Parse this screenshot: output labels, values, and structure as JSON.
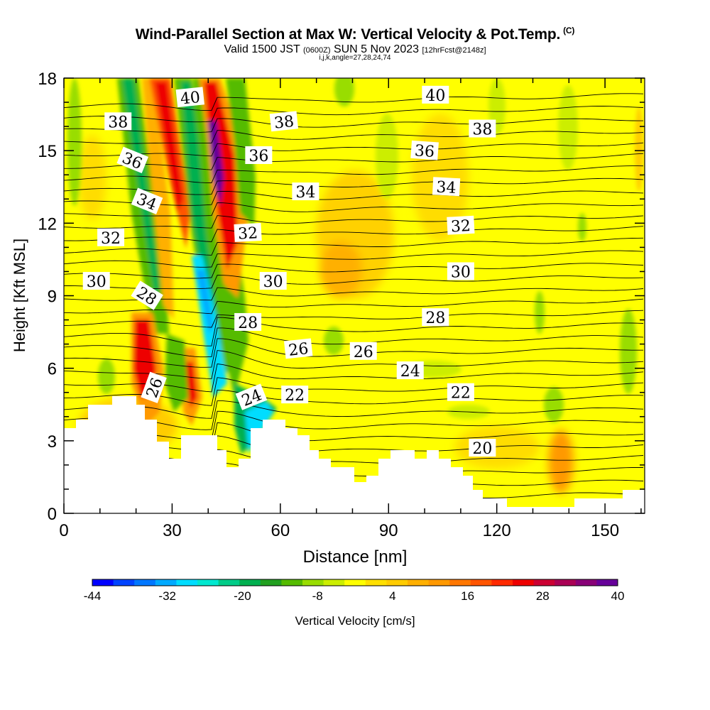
{
  "header": {
    "title": "Wind-Parallel Section at Max W: Vertical Velocity & Pot.Temp.",
    "copyright": "(C)",
    "valid_prefix": "Valid 1500 JST",
    "valid_zulu": "(0600Z)",
    "valid_date": "SUN 5 Nov 2023",
    "forecast": "[12hrFcst@2148z]",
    "indices": "i,j,k,angle=27,28,24,74"
  },
  "chart_data": {
    "type": "heatmap",
    "xlabel": "Distance [nm]",
    "ylabel": "Height [Kft MSL]",
    "xlim": [
      0,
      161
    ],
    "ylim": [
      0,
      18
    ],
    "xticks": [
      0,
      30,
      60,
      90,
      120,
      150
    ],
    "yticks": [
      0,
      3,
      6,
      9,
      12,
      15,
      18
    ],
    "colorbar": {
      "label": "Vertical Velocity [cm/s]",
      "min": -44,
      "max": 40,
      "ticks": [
        -44,
        -32,
        -20,
        -8,
        4,
        16,
        28,
        40
      ],
      "colors": [
        "#0000ff",
        "#0044ff",
        "#0077ff",
        "#00aaff",
        "#00ddff",
        "#00e8d0",
        "#00cc88",
        "#00b050",
        "#22a020",
        "#55bb00",
        "#99dd00",
        "#ccee00",
        "#ffff00",
        "#ffe000",
        "#ffcc00",
        "#ffb000",
        "#ff9900",
        "#ff7700",
        "#ff5500",
        "#ff2a00",
        "#ee0000",
        "#cc0033",
        "#aa0055",
        "#880077",
        "#660099"
      ]
    },
    "theta_labels": [
      {
        "text": "40",
        "x": 35,
        "y": 17.2,
        "angle": -6
      },
      {
        "text": "40",
        "x": 103,
        "y": 17.3,
        "angle": 0
      },
      {
        "text": "38",
        "x": 15,
        "y": 16.2,
        "angle": 0
      },
      {
        "text": "38",
        "x": 61,
        "y": 16.2,
        "angle": -6
      },
      {
        "text": "38",
        "x": 116,
        "y": 15.9,
        "angle": 0
      },
      {
        "text": "36",
        "x": 19,
        "y": 14.6,
        "angle": 22
      },
      {
        "text": "36",
        "x": 54,
        "y": 14.8,
        "angle": 0
      },
      {
        "text": "36",
        "x": 100,
        "y": 15.0,
        "angle": 4
      },
      {
        "text": "34",
        "x": 23,
        "y": 12.9,
        "angle": 22
      },
      {
        "text": "34",
        "x": 67,
        "y": 13.3,
        "angle": 0
      },
      {
        "text": "34",
        "x": 106,
        "y": 13.5,
        "angle": 3
      },
      {
        "text": "32",
        "x": 13,
        "y": 11.4,
        "angle": 0
      },
      {
        "text": "32",
        "x": 51,
        "y": 11.6,
        "angle": -3
      },
      {
        "text": "32",
        "x": 110,
        "y": 11.9,
        "angle": -3
      },
      {
        "text": "30",
        "x": 9,
        "y": 9.6,
        "angle": 0
      },
      {
        "text": "30",
        "x": 58,
        "y": 9.6,
        "angle": 0
      },
      {
        "text": "30",
        "x": 110,
        "y": 10.0,
        "angle": 0
      },
      {
        "text": "28",
        "x": 23,
        "y": 9.0,
        "angle": 32
      },
      {
        "text": "28",
        "x": 51,
        "y": 7.9,
        "angle": 0
      },
      {
        "text": "28",
        "x": 103,
        "y": 8.1,
        "angle": 0
      },
      {
        "text": "26",
        "x": 65,
        "y": 6.8,
        "angle": -6
      },
      {
        "text": "26",
        "x": 83,
        "y": 6.7,
        "angle": 0
      },
      {
        "text": "24",
        "x": 96,
        "y": 5.9,
        "angle": 0
      },
      {
        "text": "26",
        "x": 25,
        "y": 5.2,
        "angle": -70
      },
      {
        "text": "24",
        "x": 52,
        "y": 4.8,
        "angle": -22
      },
      {
        "text": "22",
        "x": 64,
        "y": 4.9,
        "angle": 0
      },
      {
        "text": "22",
        "x": 110,
        "y": 5.0,
        "angle": 0
      },
      {
        "text": "20",
        "x": 116,
        "y": 2.7,
        "angle": 0
      }
    ]
  },
  "colors": {
    "background_field": "#ffff00",
    "terrain": "#ffffff",
    "contour": "#000000"
  }
}
